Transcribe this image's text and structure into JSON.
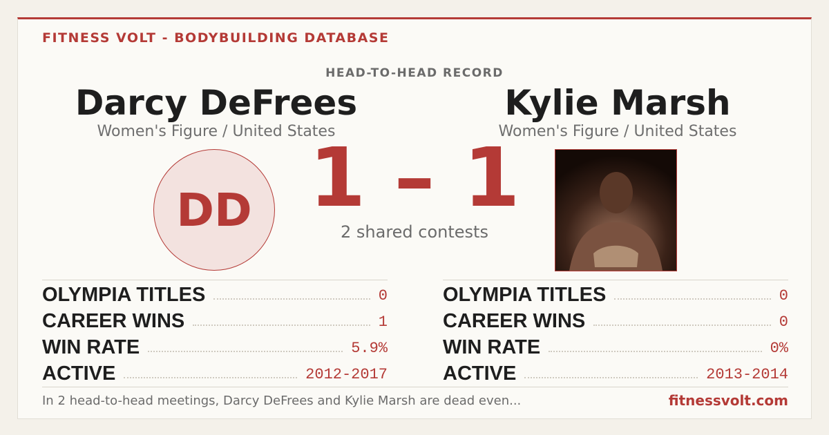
{
  "header": {
    "brand": "FITNESS VOLT - BODYBUILDING DATABASE",
    "section": "HEAD-TO-HEAD RECORD"
  },
  "left": {
    "name": "Darcy DeFrees",
    "subtitle": "Women's Figure / United States",
    "initials": "DD",
    "stats": [
      {
        "label": "OLYMPIA TITLES",
        "value": "0"
      },
      {
        "label": "CAREER WINS",
        "value": "1"
      },
      {
        "label": "WIN RATE",
        "value": "5.9%"
      },
      {
        "label": "ACTIVE",
        "value": "2012-2017"
      }
    ]
  },
  "right": {
    "name": "Kylie Marsh",
    "subtitle": "Women's Figure / United States",
    "stats": [
      {
        "label": "OLYMPIA TITLES",
        "value": "0"
      },
      {
        "label": "CAREER WINS",
        "value": "0"
      },
      {
        "label": "WIN RATE",
        "value": "0%"
      },
      {
        "label": "ACTIVE",
        "value": "2013-2014"
      }
    ]
  },
  "score": {
    "text": "1 – 1",
    "caption": "2 shared contests"
  },
  "footer": {
    "summary": "In 2 head-to-head meetings, Darcy DeFrees and Kylie Marsh are dead even...",
    "site": "fitnessvolt.com"
  }
}
